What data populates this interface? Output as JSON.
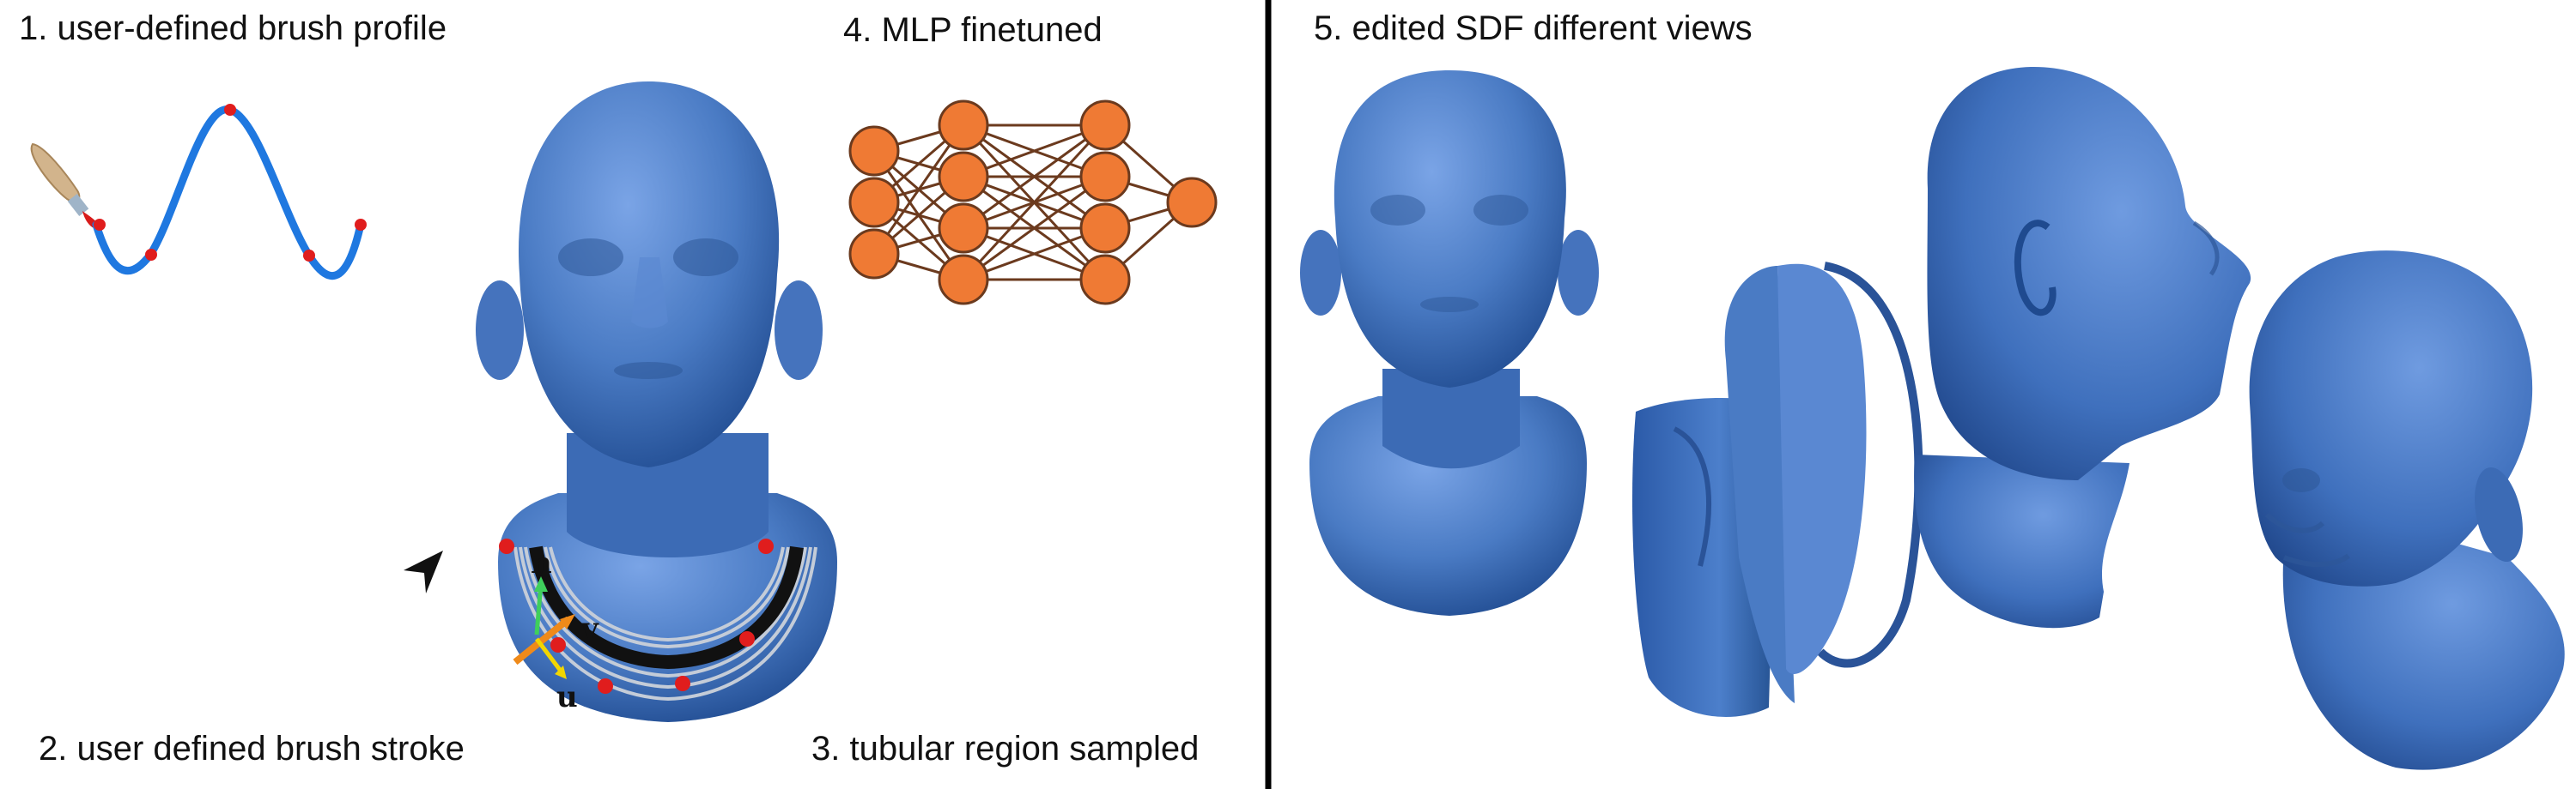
{
  "labels": {
    "step1": "1. user-defined brush profile",
    "step2": "2. user defined brush stroke",
    "step3": "3. tubular region sampled",
    "step4": "4. MLP finetuned",
    "step5": "5. edited SDF different views"
  },
  "axes": {
    "n": "n",
    "v": "v",
    "u": "u"
  },
  "network": {
    "layers": [
      3,
      4,
      4,
      1
    ]
  },
  "colors": {
    "mesh": "#4a7bc4",
    "profile_curve": "#1f78e0",
    "control_point": "#e01d1d",
    "neuron": "#ef7a34",
    "edge": "#6b3a1e",
    "divider": "#000000"
  },
  "icons": [
    "brush-icon",
    "cursor-arrow-icon"
  ]
}
